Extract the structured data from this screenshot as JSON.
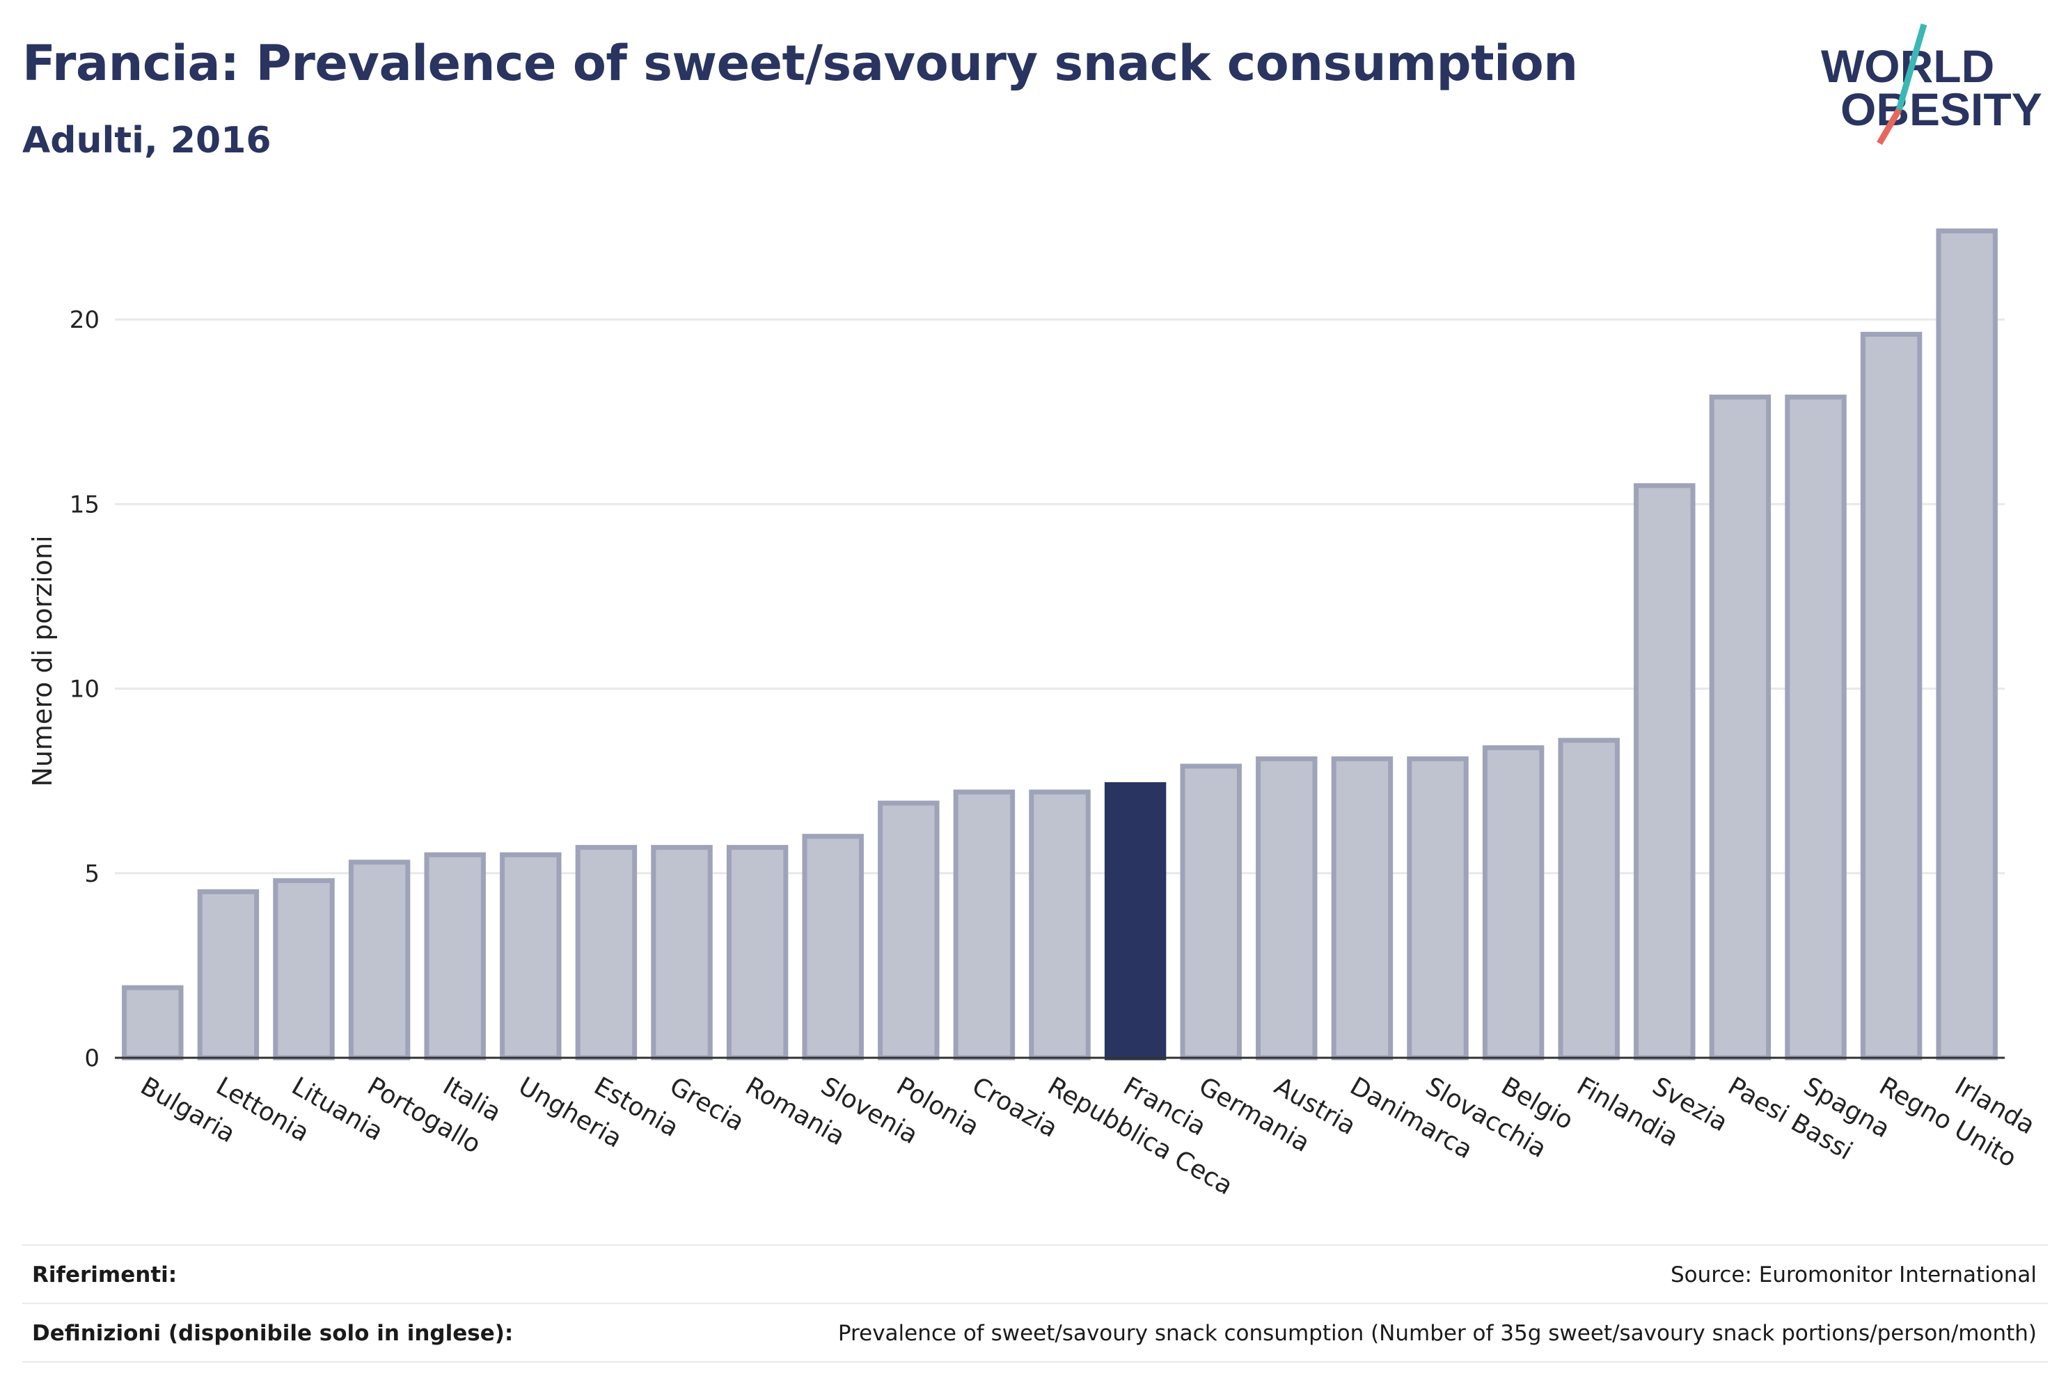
{
  "header": {
    "title": "Francia: Prevalence of sweet/savoury snack consumption",
    "subtitle": "Adulti, 2016"
  },
  "logo": {
    "line1": "WORLD",
    "line2": "OBESITY",
    "accent_teal": "#3ab8b5",
    "accent_coral": "#e8675a"
  },
  "colors": {
    "highlight": "#2a3460",
    "bar_fill": "#bfc2cf",
    "bar_stroke": "#9ea3b9",
    "axis": "#333333",
    "grid": "#e8e8ee"
  },
  "chart_data": {
    "type": "bar",
    "ylabel": "Numero di porzioni",
    "xlabel": "",
    "ylim": [
      0,
      23
    ],
    "yticks": [
      0,
      5,
      10,
      15,
      20
    ],
    "grid": true,
    "highlight": "Francia",
    "categories": [
      "Bulgaria",
      "Lettonia",
      "Lituania",
      "Portogallo",
      "Italia",
      "Ungheria",
      "Estonia",
      "Grecia",
      "Romania",
      "Slovenia",
      "Polonia",
      "Croazia",
      "Repubblica Ceca",
      "Francia",
      "Germania",
      "Austria",
      "Danimarca",
      "Slovacchia",
      "Belgio",
      "Finlandia",
      "Svezia",
      "Paesi Bassi",
      "Spagna",
      "Regno Unito",
      "Irlanda"
    ],
    "values": [
      1.9,
      4.5,
      4.8,
      5.3,
      5.5,
      5.5,
      5.7,
      5.7,
      5.7,
      6.0,
      6.9,
      7.2,
      7.2,
      7.4,
      7.9,
      8.1,
      8.1,
      8.1,
      8.4,
      8.6,
      15.5,
      17.9,
      17.9,
      19.6,
      22.4
    ]
  },
  "footer": {
    "references_label": "Riferimenti:",
    "references_value": "Source: Euromonitor International",
    "definitions_label": "Definizioni (disponibile solo in inglese):",
    "definitions_value": "Prevalence of sweet/savoury snack consumption (Number of 35g sweet/savoury snack portions/person/month)"
  }
}
